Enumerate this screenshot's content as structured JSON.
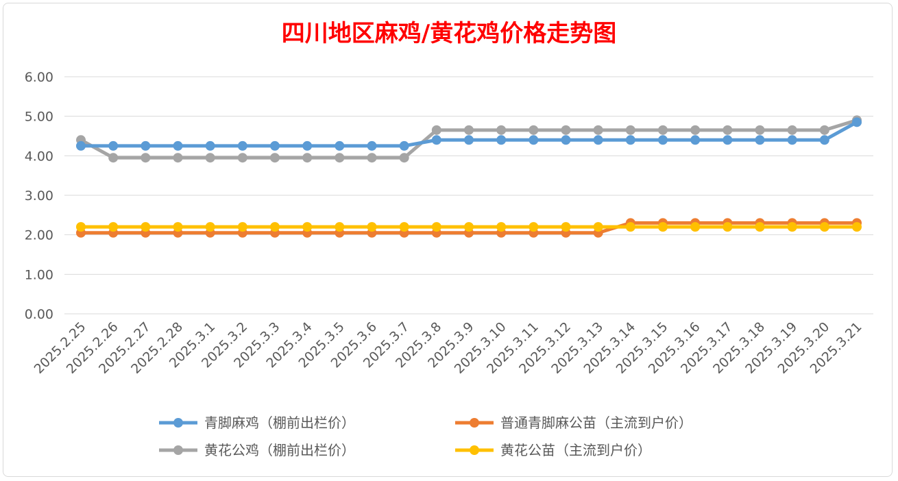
{
  "chart_data": {
    "type": "line",
    "title": "四川地区麻鸡/黄花鸡价格走势图",
    "xlabel": "",
    "ylabel": "",
    "ylim": [
      0,
      6
    ],
    "yticks": [
      "0.00",
      "1.00",
      "2.00",
      "3.00",
      "4.00",
      "5.00",
      "6.00"
    ],
    "grid": true,
    "legend_position": "bottom",
    "categories": [
      "2025.2.25",
      "2025.2.26",
      "2025.2.27",
      "2025.2.28",
      "2025.3.1",
      "2025.3.2",
      "2025.3.3",
      "2025.3.4",
      "2025.3.5",
      "2025.3.6",
      "2025.3.7",
      "2025.3.8",
      "2025.3.9",
      "2025.3.10",
      "2025.3.11",
      "2025.3.12",
      "2025.3.13",
      "2025.3.14",
      "2025.3.15",
      "2025.3.16",
      "2025.3.17",
      "2025.3.18",
      "2025.3.19",
      "2025.3.20",
      "2025.3.21"
    ],
    "series": [
      {
        "name": "青脚麻鸡（棚前出栏价）",
        "color": "#5b9bd5",
        "values": [
          4.25,
          4.25,
          4.25,
          4.25,
          4.25,
          4.25,
          4.25,
          4.25,
          4.25,
          4.25,
          4.25,
          4.4,
          4.4,
          4.4,
          4.4,
          4.4,
          4.4,
          4.4,
          4.4,
          4.4,
          4.4,
          4.4,
          4.4,
          4.4,
          4.85
        ]
      },
      {
        "name": "普通青脚麻公苗（主流到户价）",
        "color": "#ed7d31",
        "values": [
          2.05,
          2.05,
          2.05,
          2.05,
          2.05,
          2.05,
          2.05,
          2.05,
          2.05,
          2.05,
          2.05,
          2.05,
          2.05,
          2.05,
          2.05,
          2.05,
          2.05,
          2.3,
          2.3,
          2.3,
          2.3,
          2.3,
          2.3,
          2.3,
          2.3
        ]
      },
      {
        "name": "黄花公鸡（棚前出栏价）",
        "color": "#a5a5a5",
        "values": [
          4.4,
          3.95,
          3.95,
          3.95,
          3.95,
          3.95,
          3.95,
          3.95,
          3.95,
          3.95,
          3.95,
          4.65,
          4.65,
          4.65,
          4.65,
          4.65,
          4.65,
          4.65,
          4.65,
          4.65,
          4.65,
          4.65,
          4.65,
          4.65,
          4.9
        ]
      },
      {
        "name": "黄花公苗（主流到户价）",
        "color": "#ffc000",
        "values": [
          2.2,
          2.2,
          2.2,
          2.2,
          2.2,
          2.2,
          2.2,
          2.2,
          2.2,
          2.2,
          2.2,
          2.2,
          2.2,
          2.2,
          2.2,
          2.2,
          2.2,
          2.2,
          2.2,
          2.2,
          2.2,
          2.2,
          2.2,
          2.2,
          2.2
        ]
      }
    ]
  }
}
